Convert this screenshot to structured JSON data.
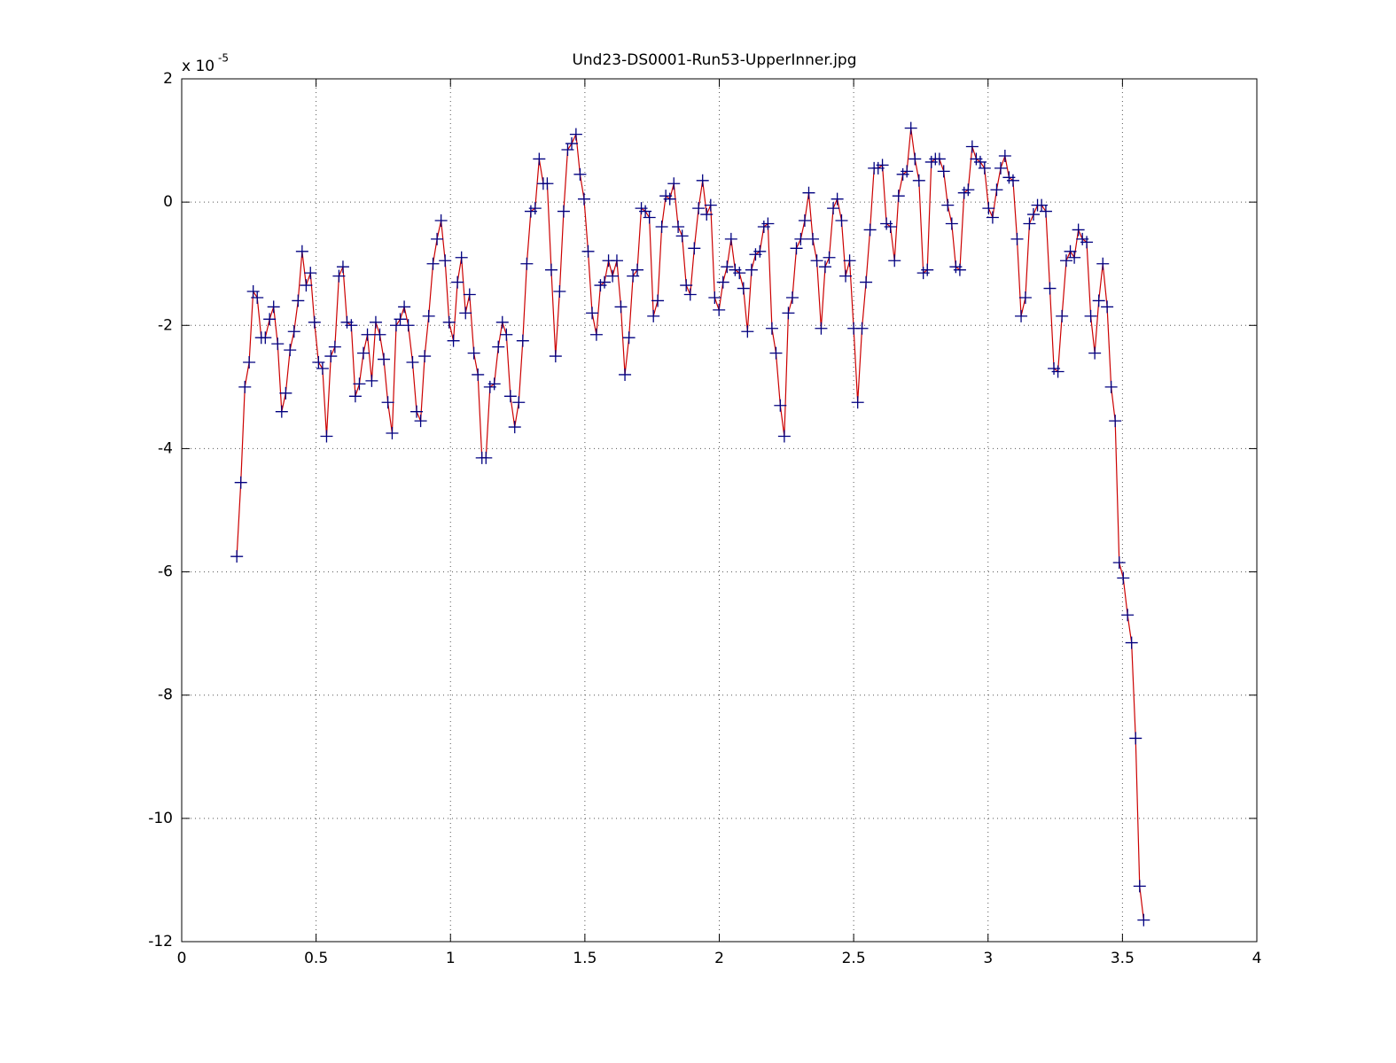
{
  "chart_data": {
    "type": "line",
    "title": "Und23-DS0001-Run53-UpperInner.jpg",
    "y_multiplier": "x 10",
    "y_multiplier_exponent": "-5",
    "x": [
      0.205,
      0.22,
      0.235,
      0.251,
      0.266,
      0.281,
      0.296,
      0.311,
      0.327,
      0.342,
      0.357,
      0.372,
      0.387,
      0.403,
      0.418,
      0.433,
      0.448,
      0.463,
      0.479,
      0.494,
      0.509,
      0.524,
      0.539,
      0.555,
      0.57,
      0.585,
      0.6,
      0.615,
      0.631,
      0.646,
      0.661,
      0.676,
      0.691,
      0.707,
      0.722,
      0.737,
      0.752,
      0.767,
      0.783,
      0.798,
      0.813,
      0.828,
      0.843,
      0.859,
      0.874,
      0.889,
      0.904,
      0.919,
      0.935,
      0.95,
      0.965,
      0.98,
      0.995,
      1.011,
      1.026,
      1.041,
      1.056,
      1.071,
      1.087,
      1.102,
      1.117,
      1.132,
      1.147,
      1.163,
      1.178,
      1.193,
      1.208,
      1.223,
      1.239,
      1.254,
      1.269,
      1.284,
      1.299,
      1.315,
      1.33,
      1.345,
      1.36,
      1.375,
      1.391,
      1.406,
      1.421,
      1.436,
      1.451,
      1.467,
      1.482,
      1.497,
      1.512,
      1.527,
      1.543,
      1.558,
      1.573,
      1.588,
      1.603,
      1.619,
      1.634,
      1.649,
      1.664,
      1.679,
      1.695,
      1.71,
      1.725,
      1.74,
      1.755,
      1.771,
      1.786,
      1.801,
      1.816,
      1.831,
      1.847,
      1.862,
      1.877,
      1.892,
      1.907,
      1.923,
      1.938,
      1.953,
      1.968,
      1.983,
      1.999,
      2.014,
      2.029,
      2.044,
      2.059,
      2.075,
      2.09,
      2.105,
      2.12,
      2.135,
      2.151,
      2.166,
      2.181,
      2.196,
      2.211,
      2.227,
      2.242,
      2.257,
      2.272,
      2.287,
      2.303,
      2.318,
      2.333,
      2.348,
      2.363,
      2.379,
      2.394,
      2.409,
      2.424,
      2.439,
      2.455,
      2.47,
      2.485,
      2.5,
      2.515,
      2.531,
      2.546,
      2.561,
      2.576,
      2.591,
      2.607,
      2.622,
      2.637,
      2.652,
      2.667,
      2.683,
      2.698,
      2.713,
      2.728,
      2.743,
      2.759,
      2.774,
      2.789,
      2.804,
      2.819,
      2.835,
      2.85,
      2.865,
      2.88,
      2.895,
      2.911,
      2.926,
      2.941,
      2.956,
      2.971,
      2.987,
      3.002,
      3.017,
      3.032,
      3.047,
      3.063,
      3.078,
      3.093,
      3.108,
      3.123,
      3.139,
      3.154,
      3.169,
      3.184,
      3.199,
      3.215,
      3.23,
      3.245,
      3.26,
      3.275,
      3.291,
      3.306,
      3.321,
      3.336,
      3.351,
      3.367,
      3.382,
      3.397,
      3.412,
      3.427,
      3.443,
      3.458,
      3.473,
      3.488,
      3.503,
      3.519,
      3.534,
      3.549,
      3.564,
      3.579
    ],
    "series": [
      {
        "color": "#cc0000",
        "marker_color": "#000080",
        "marker": "+",
        "values": [
          -5.75,
          -4.55,
          -3.0,
          -2.6,
          -1.45,
          -1.55,
          -2.2,
          -2.2,
          -1.9,
          -1.7,
          -2.3,
          -3.4,
          -3.1,
          -2.4,
          -2.1,
          -1.6,
          -0.8,
          -1.35,
          -1.15,
          -1.95,
          -2.6,
          -2.7,
          -3.8,
          -2.5,
          -2.35,
          -1.2,
          -1.05,
          -1.95,
          -2.0,
          -3.15,
          -2.95,
          -2.45,
          -2.15,
          -2.9,
          -1.95,
          -2.15,
          -2.55,
          -3.25,
          -3.75,
          -2.0,
          -1.9,
          -1.7,
          -2.0,
          -2.6,
          -3.4,
          -3.55,
          -2.5,
          -1.85,
          -1.0,
          -0.6,
          -0.3,
          -0.95,
          -1.95,
          -2.25,
          -1.3,
          -0.9,
          -1.8,
          -1.5,
          -2.45,
          -2.8,
          -4.15,
          -4.15,
          -3.0,
          -2.95,
          -2.35,
          -1.95,
          -2.15,
          -3.15,
          -3.65,
          -3.25,
          -2.25,
          -1.0,
          -0.15,
          -0.1,
          0.7,
          0.3,
          0.3,
          -1.1,
          -2.5,
          -1.45,
          -0.15,
          0.85,
          0.95,
          1.1,
          0.45,
          0.05,
          -0.8,
          -1.8,
          -2.15,
          -1.35,
          -1.3,
          -0.95,
          -1.2,
          -0.95,
          -1.7,
          -2.8,
          -2.2,
          -1.2,
          -1.1,
          -0.1,
          -0.15,
          -0.25,
          -1.85,
          -1.6,
          -0.4,
          0.1,
          0.05,
          0.3,
          -0.4,
          -0.55,
          -1.35,
          -1.5,
          -0.75,
          -0.1,
          0.35,
          -0.2,
          -0.05,
          -1.55,
          -1.75,
          -1.3,
          -1.05,
          -0.6,
          -1.1,
          -1.15,
          -1.4,
          -2.1,
          -1.1,
          -0.85,
          -0.8,
          -0.4,
          -0.35,
          -2.05,
          -2.45,
          -3.3,
          -3.8,
          -1.8,
          -1.55,
          -0.75,
          -0.6,
          -0.3,
          0.15,
          -0.6,
          -0.95,
          -2.05,
          -1.05,
          -0.9,
          -0.1,
          0.05,
          -0.3,
          -1.2,
          -0.95,
          -2.05,
          -3.25,
          -2.05,
          -1.3,
          -0.45,
          0.55,
          0.55,
          0.6,
          -0.35,
          -0.4,
          -0.95,
          0.1,
          0.45,
          0.5,
          1.2,
          0.7,
          0.35,
          -1.15,
          -1.1,
          0.65,
          0.7,
          0.7,
          0.5,
          -0.05,
          -0.35,
          -1.05,
          -1.1,
          0.15,
          0.2,
          0.9,
          0.7,
          0.65,
          0.55,
          -0.1,
          -0.25,
          0.2,
          0.55,
          0.75,
          0.4,
          0.35,
          -0.6,
          -1.85,
          -1.55,
          -0.35,
          -0.2,
          -0.05,
          -0.05,
          -0.15,
          -1.4,
          -2.7,
          -2.75,
          -1.85,
          -0.95,
          -0.8,
          -0.9,
          -0.45,
          -0.6,
          -0.65,
          -1.85,
          -2.45,
          -1.6,
          -1.0,
          -1.7,
          -3.0,
          -3.55,
          -5.85,
          -6.1,
          -6.7,
          -7.15,
          -8.7,
          -11.1,
          -11.65
        ]
      }
    ],
    "xlim": [
      0,
      4
    ],
    "ylim": [
      -12,
      2
    ],
    "xticks": [
      0,
      0.5,
      1,
      1.5,
      2,
      2.5,
      3,
      3.5,
      4
    ],
    "yticks": [
      -12,
      -10,
      -8,
      -6,
      -4,
      -2,
      0,
      2
    ],
    "grid": true
  }
}
